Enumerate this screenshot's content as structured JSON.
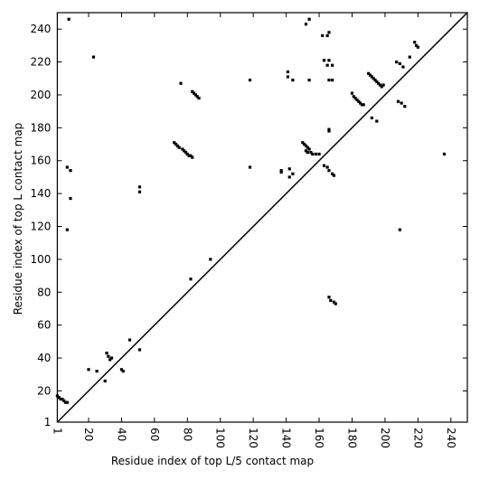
{
  "chart_data": {
    "type": "scatter",
    "xlabel": "Residue index of top L/5 contact map",
    "ylabel": "Residue index of top L contact map",
    "xlim": [
      1,
      250
    ],
    "ylim": [
      1,
      250
    ],
    "xticks": [
      1,
      20,
      40,
      60,
      80,
      100,
      120,
      140,
      160,
      180,
      200,
      220,
      240
    ],
    "yticks": [
      1,
      20,
      40,
      60,
      80,
      100,
      120,
      140,
      160,
      180,
      200,
      220,
      240
    ],
    "diagonal": true,
    "marker": "square",
    "series": [
      {
        "color": "#000000",
        "x": [
          8,
          23,
          76,
          83,
          84,
          85,
          86,
          87,
          118,
          141,
          141,
          144,
          154,
          152,
          154,
          162,
          165,
          166,
          163,
          166,
          165,
          168,
          166,
          168,
          180,
          181,
          182,
          183,
          184,
          185,
          186,
          187,
          190,
          191,
          192,
          193,
          194,
          195,
          196,
          197,
          198,
          199,
          192,
          195,
          207,
          209,
          211,
          208,
          210,
          212,
          215,
          218,
          219,
          220,
          209,
          236,
          166,
          166,
          150,
          151,
          152,
          153,
          154,
          152,
          153,
          155,
          156,
          158,
          160,
          163,
          165,
          166,
          168,
          169,
          137,
          137,
          142,
          144,
          142,
          118,
          72,
          73,
          74,
          75,
          77,
          78,
          79,
          80,
          81,
          82,
          83,
          7,
          9,
          9,
          51,
          51,
          7,
          1,
          2,
          3,
          4,
          5,
          6,
          7,
          20,
          25,
          30,
          31,
          32,
          33,
          34,
          40,
          41,
          45,
          51,
          94,
          82,
          166,
          167,
          169,
          170
        ],
        "y": [
          246,
          223,
          207,
          202,
          201,
          200,
          199,
          198,
          209,
          214,
          211,
          209,
          209,
          243,
          246,
          236,
          236,
          238,
          221,
          221,
          218,
          218,
          209,
          209,
          201,
          199,
          198,
          197,
          196,
          195,
          194,
          194,
          213,
          212,
          211,
          210,
          209,
          208,
          207,
          206,
          205,
          206,
          186,
          184,
          220,
          219,
          217,
          196,
          195,
          193,
          223,
          232,
          230,
          229,
          118,
          164,
          179,
          178,
          171,
          170,
          169,
          168,
          167,
          166,
          165,
          165,
          164,
          164,
          164,
          157,
          156,
          154,
          152,
          151,
          154,
          153,
          155,
          152,
          150,
          156,
          171,
          170,
          169,
          168,
          167,
          166,
          165,
          164,
          163,
          163,
          162,
          156,
          154,
          137,
          144,
          141,
          118,
          17,
          16,
          15,
          15,
          14,
          13,
          13,
          33,
          32,
          26,
          43,
          41,
          39,
          40,
          33,
          32,
          51,
          45,
          100,
          88,
          77,
          75,
          74,
          73
        ]
      }
    ]
  }
}
